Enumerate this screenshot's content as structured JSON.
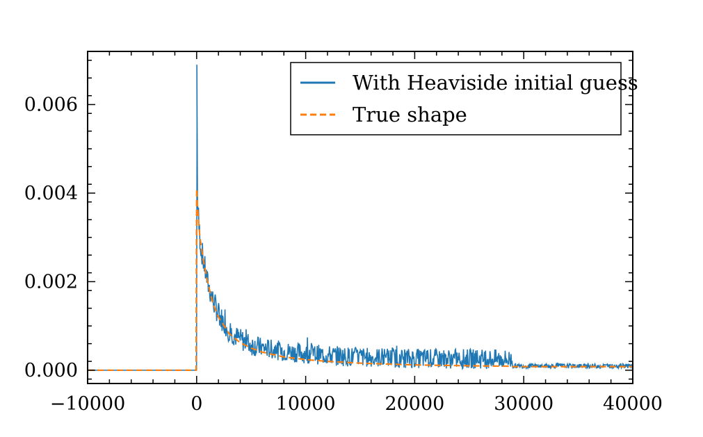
{
  "chart_data": {
    "type": "line",
    "title": "",
    "xlabel": "",
    "ylabel": "",
    "xlim": [
      -10000,
      40000
    ],
    "ylim": [
      -0.0003,
      0.0072
    ],
    "x_ticks": [
      -10000,
      0,
      10000,
      20000,
      30000,
      40000
    ],
    "x_tick_labels": [
      "−10000",
      "0",
      "10000",
      "20000",
      "30000",
      "40000"
    ],
    "y_ticks": [
      0.0,
      0.002,
      0.004,
      0.006
    ],
    "y_tick_labels": [
      "0.000",
      "0.002",
      "0.004",
      "0.006"
    ],
    "grid": false,
    "legend_position": "top-right",
    "series": [
      {
        "name": "With Heaviside initial guess",
        "color": "#1f77b4",
        "style": "solid",
        "x": [
          -10000,
          -100,
          0,
          20,
          50,
          100,
          200,
          400,
          700,
          1000,
          1500,
          2000,
          3000,
          4000,
          5000,
          6000,
          8000,
          10000,
          12000,
          14000,
          16000,
          18000,
          20000,
          22000,
          24000,
          25000,
          26000,
          27000,
          28000,
          28900,
          29000,
          30000,
          35000,
          40000
        ],
        "y": [
          0.0,
          0.0,
          0.0,
          0.0069,
          0.0042,
          0.0038,
          0.0033,
          0.0028,
          0.0024,
          0.002,
          0.0016,
          0.0013,
          0.0009,
          0.00072,
          0.0006,
          0.00053,
          0.00045,
          0.0004,
          0.00036,
          0.00033,
          0.00031,
          0.0003,
          0.00029,
          0.00028,
          0.00028,
          0.00028,
          0.00028,
          0.00027,
          0.00027,
          0.00026,
          0.0001,
          0.0001,
          0.0001,
          0.0001
        ],
        "noise_band": [
          0.0001,
          0.0006,
          0.00075,
          0.0008,
          0.0008,
          0.0007,
          0.00065,
          0.0006,
          0.00058,
          0.00055,
          0.00055,
          0.00055,
          0.0005,
          0.0005,
          0.0005,
          0.00045,
          0.00045,
          0.00045,
          0.00045,
          0.00045,
          0.00045,
          0.00045,
          0.00045,
          0.00045,
          0.00045,
          0.00045,
          0.00045,
          0.00045,
          0.00045,
          0.00045,
          0.0001,
          0.0001,
          0.0001,
          0.0001
        ]
      },
      {
        "name": "True shape",
        "color": "#ff7f0e",
        "style": "dashed",
        "x": [
          -10000,
          -50,
          0,
          100,
          300,
          600,
          1000,
          1500,
          2000,
          3000,
          4000,
          5000,
          6000,
          8000,
          10000,
          12000,
          15000,
          20000,
          25000,
          28900,
          29000,
          35000,
          40000
        ],
        "y": [
          0.0,
          0.0,
          0.0041,
          0.0036,
          0.003,
          0.0025,
          0.002,
          0.0015,
          0.0012,
          0.00082,
          0.00062,
          0.0005,
          0.00041,
          0.0003,
          0.00024,
          0.0002,
          0.00016,
          0.00012,
          0.0001,
          9e-05,
          8e-05,
          8e-05,
          8e-05
        ]
      }
    ]
  }
}
